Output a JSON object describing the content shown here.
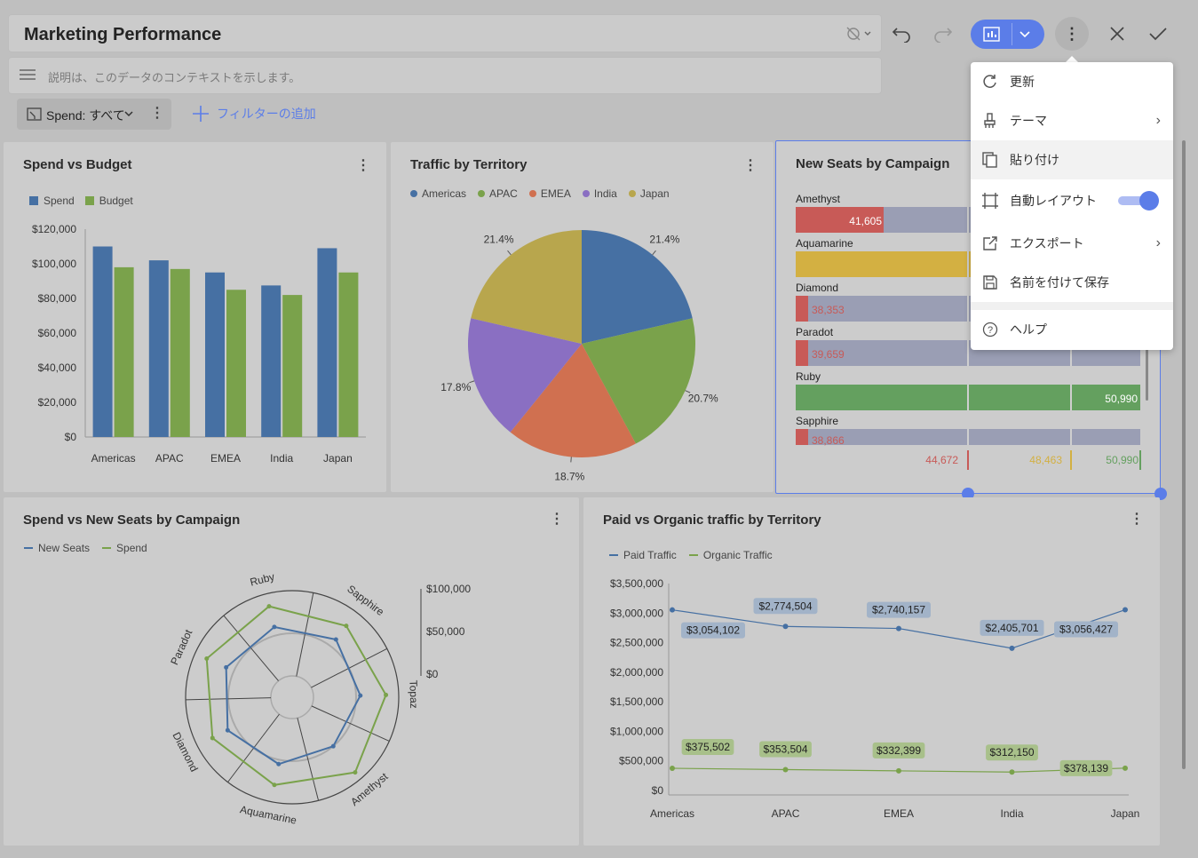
{
  "header": {
    "title": "Marketing Performance",
    "description_placeholder": "説明は、このデータのコンテキストを示します。",
    "filter_label": "Spend: すべて",
    "add_filter_label": "フィルターの追加"
  },
  "menu": {
    "items": [
      {
        "label": "更新",
        "icon": "refresh-icon"
      },
      {
        "label": "テーマ",
        "icon": "brush-icon"
      },
      {
        "label": "貼り付け",
        "icon": "paste-icon"
      },
      {
        "label": "自動レイアウト",
        "icon": "auto-layout-icon",
        "toggle": true
      },
      {
        "label": "エクスポート",
        "icon": "export-icon"
      },
      {
        "label": "名前を付けて保存",
        "icon": "save-icon"
      },
      {
        "label": "ヘルプ",
        "icon": "help-icon"
      }
    ]
  },
  "colors": {
    "blue": "#4670a3",
    "green": "#7aa24b",
    "orange": "#d07050",
    "purple": "#8a6fc2",
    "yellow": "#b8a64d",
    "accent": "#5b7de8"
  },
  "panels": {
    "spend_budget": {
      "title": "Spend vs Budget"
    },
    "traffic_territory": {
      "title": "Traffic by Territory"
    },
    "new_seats": {
      "title": "New Seats by Campaign"
    },
    "spend_seats_campaign": {
      "title": "Spend vs New Seats by Campaign"
    },
    "paid_organic": {
      "title": "Paid vs Organic traffic by Territory"
    }
  },
  "chart_data": [
    {
      "type": "bar",
      "title": "Spend vs Budget",
      "categories": [
        "Americas",
        "APAC",
        "EMEA",
        "India",
        "Japan"
      ],
      "series": [
        {
          "name": "Spend",
          "values": [
            110000,
            102000,
            95000,
            87500,
            109000
          ]
        },
        {
          "name": "Budget",
          "values": [
            98000,
            97000,
            85000,
            82000,
            95000
          ]
        }
      ],
      "yticks": [
        "$120,000",
        "$100,000",
        "$80,000",
        "$60,000",
        "$40,000",
        "$20,000",
        "$0"
      ],
      "ylim": [
        0,
        120000
      ]
    },
    {
      "type": "pie",
      "title": "Traffic by Territory",
      "categories": [
        "Americas",
        "APAC",
        "EMEA",
        "India",
        "Japan"
      ],
      "values": [
        21.4,
        20.7,
        18.7,
        17.8,
        21.4
      ],
      "labels": [
        "21.4%",
        "20.7%",
        "18.7%",
        "17.8%",
        "21.4%"
      ]
    },
    {
      "type": "bar",
      "title": "New Seats by Campaign",
      "categories": [
        "Amethyst",
        "Aquamarine",
        "Diamond",
        "Paradot",
        "Ruby",
        "Sapphire"
      ],
      "values": [
        41605,
        48463,
        38353,
        39659,
        50990,
        38866
      ],
      "value_labels": [
        "41,605",
        "",
        "38,353",
        "39,659",
        "50,990",
        "38,866"
      ],
      "thresholds": [
        "44,672",
        "48,463",
        "50,990"
      ]
    },
    {
      "type": "line",
      "title": "Spend vs New Seats by Campaign",
      "categories": [
        "Sapphire",
        "Topaz",
        "Amethyst",
        "Aquamarine",
        "Diamond",
        "Paradot",
        "Ruby"
      ],
      "series": [
        {
          "name": "New Seats",
          "values": [
            60,
            55,
            50,
            55,
            60,
            60,
            60
          ]
        },
        {
          "name": "Spend",
          "values": [
            80,
            85,
            90,
            80,
            80,
            85,
            85
          ]
        }
      ],
      "radial_ticks": [
        "$100,000",
        "$50,000",
        "$0"
      ]
    },
    {
      "type": "line",
      "title": "Paid vs Organic traffic by Territory",
      "categories": [
        "Americas",
        "APAC",
        "EMEA",
        "India",
        "Japan"
      ],
      "series": [
        {
          "name": "Paid Traffic",
          "values": [
            3054102,
            2774504,
            2740157,
            2405701,
            3056427
          ],
          "labels": [
            "$3,054,102",
            "$2,774,504",
            "$2,740,157",
            "$2,405,701",
            "$3,056,427"
          ]
        },
        {
          "name": "Organic Traffic",
          "values": [
            375502,
            353504,
            332399,
            312150,
            378139
          ],
          "labels": [
            "$375,502",
            "$353,504",
            "$332,399",
            "$312,150",
            "$378,139"
          ]
        }
      ],
      "yticks": [
        "$3,500,000",
        "$3,000,000",
        "$2,500,000",
        "$2,000,000",
        "$1,500,000",
        "$1,000,000",
        "$500,000",
        "$0"
      ],
      "ylim": [
        0,
        3500000
      ]
    }
  ]
}
